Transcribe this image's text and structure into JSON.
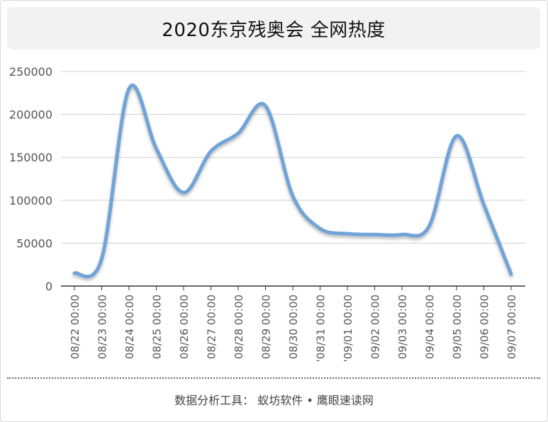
{
  "chart_data": {
    "type": "line",
    "title": "2020东京残奥会 全网热度",
    "categories": [
      "08/22 00:00",
      "08/23 00:00",
      "08/24 00:00",
      "08/25 00:00",
      "08/26 00:00",
      "08/27 00:00",
      "08/28 00:00",
      "08/29 00:00",
      "08/30 00:00",
      "'08/31 00:00",
      "'09/01 00:00",
      "09/02 00:00",
      "09/03 00:00",
      "09/04 00:00",
      "09/05 00:00",
      "09/06 00:00",
      "09/07 00:00"
    ],
    "series": [
      {
        "values": [
          15000,
          32000,
          230000,
          160000,
          109000,
          157000,
          178000,
          210000,
          105000,
          67000,
          61000,
          60000,
          60000,
          70000,
          175000,
          95000,
          14000
        ]
      }
    ],
    "yticks": [
      "0",
      "50000",
      "100000",
      "150000",
      "200000",
      "250000"
    ],
    "ylim": [
      0,
      250000
    ],
    "grid": true,
    "legend": "none",
    "colors": {
      "line": "#6fa3d8",
      "grid": "#cfcfcf",
      "axis": "#333333"
    }
  },
  "footer": "数据分析工具： 蚁坊软件 • 鹰眼速读网"
}
